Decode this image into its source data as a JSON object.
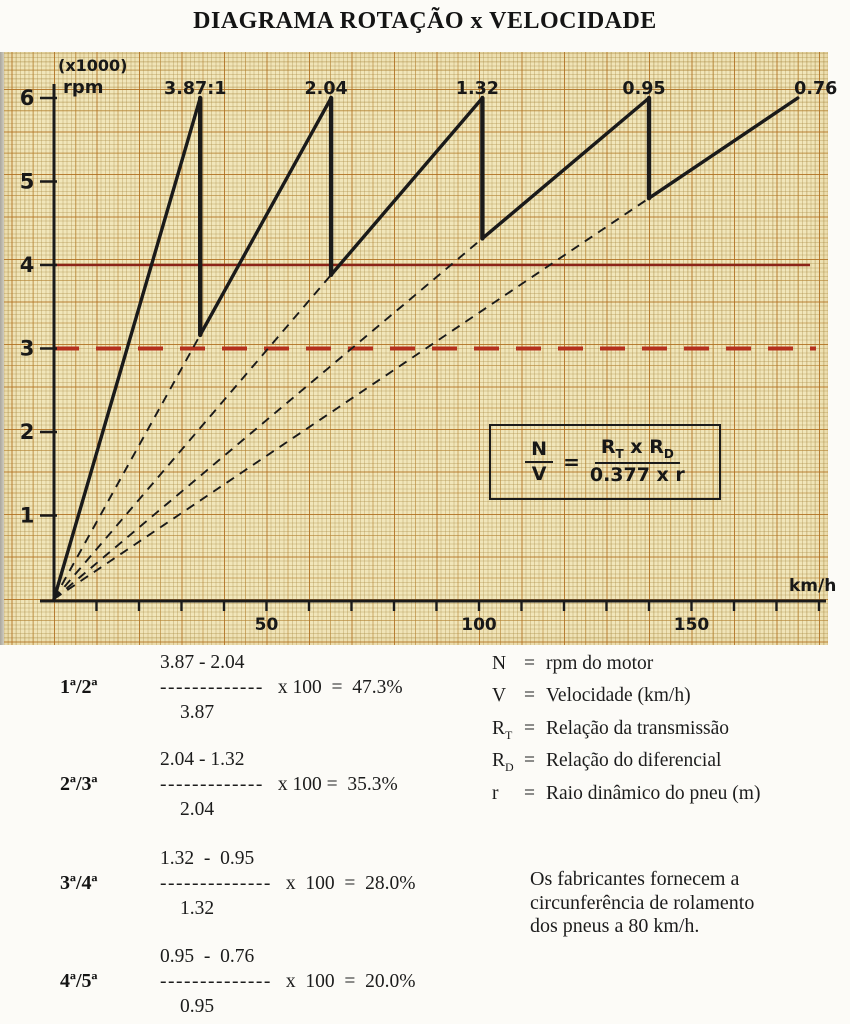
{
  "page": {
    "title": "DIAGRAMA ROTAÇÃO x VELOCIDADE"
  },
  "chart_data": {
    "type": "line",
    "title": "DIAGRAMA ROTAÇÃO x VELOCIDADE",
    "xlabel": "km/h",
    "ylabel_scale": "(x1000)",
    "ylabel_unit": "rpm",
    "x_ticks": [
      50,
      100,
      150
    ],
    "x_minor_step": 10,
    "x_max": 180,
    "y_ticks": [
      1,
      2,
      3,
      4,
      5,
      6
    ],
    "y_max_rpm": 6000,
    "nv_constant_rpm_per_kmh_per_ratio": 45.1,
    "gears": [
      {
        "label": "3.87:1",
        "ratio": 3.87,
        "v_at_6000_kmh": 34.4,
        "drop_to_rpm": 3163
      },
      {
        "label": "2.04",
        "ratio": 2.04,
        "v_at_6000_kmh": 65.2,
        "drop_to_rpm": 3882
      },
      {
        "label": "1.32",
        "ratio": 1.32,
        "v_at_6000_kmh": 100.8,
        "drop_to_rpm": 4318
      },
      {
        "label": "0.95",
        "ratio": 0.95,
        "v_at_6000_kmh": 140.0,
        "drop_to_rpm": 4800
      },
      {
        "label": "0.76",
        "ratio": 0.76,
        "v_at_6000_kmh": 175.0,
        "drop_to_rpm": null
      }
    ],
    "reference_lines": [
      {
        "rpm": 4000,
        "style": "solid",
        "color": "#8c2418"
      },
      {
        "rpm": 3000,
        "style": "dashed",
        "color": "#b5301e"
      }
    ],
    "grid": "graph-paper",
    "legend_position": "none"
  },
  "formula": {
    "num_left": "N",
    "den_left": "V",
    "equals": "=",
    "r1": "R",
    "r1_sub": "T",
    "times": "x",
    "r2": "R",
    "r2_sub": "D",
    "den_right": "0.377 x r"
  },
  "calcs": {
    "steps": [
      {
        "label": "1ª/2ª",
        "numerator": "3.87 - 2.04",
        "bar": "-------------",
        "suffix": "x 100  =  47.3%",
        "denominator": "3.87"
      },
      {
        "label": "2ª/3ª",
        "numerator": "2.04 - 1.32",
        "bar": "-------------",
        "suffix": "x 100 =  35.3%",
        "denominator": "2.04"
      },
      {
        "label": "3ª/4ª",
        "numerator": "1.32  -  0.95",
        "bar": "--------------",
        "suffix": "x  100  =  28.0%",
        "denominator": "1.32"
      },
      {
        "label": "4ª/5ª",
        "numerator": "0.95  -  0.76",
        "bar": "--------------",
        "suffix": "x  100  =  20.0%",
        "denominator": "0.95"
      }
    ]
  },
  "legend": {
    "items": [
      {
        "symbol": "N",
        "sub": "",
        "eq": "=",
        "definition": "rpm do motor"
      },
      {
        "symbol": "V",
        "sub": "",
        "eq": "=",
        "definition": "Velocidade (km/h)"
      },
      {
        "symbol": "R",
        "sub": "T",
        "eq": "=",
        "definition": "Relação da transmissão"
      },
      {
        "symbol": "R",
        "sub": "D",
        "eq": "=",
        "definition": "Relação do diferencial"
      },
      {
        "symbol": "r",
        "sub": "",
        "eq": "=",
        "definition": "Raio dinâmico do pneu (m)"
      }
    ]
  },
  "note": {
    "line1": "Os fabricantes fornecem a",
    "line2": "circunferência de rolamento",
    "line3": "dos pneus a 80 km/h."
  }
}
